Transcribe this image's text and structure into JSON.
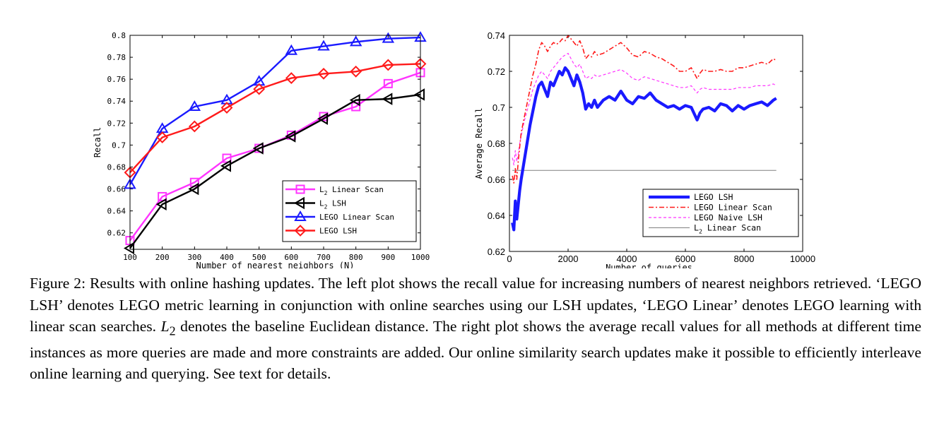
{
  "chart_data": [
    {
      "type": "line",
      "title": "",
      "xlabel": "Number of nearest neighbors (N)",
      "ylabel": "Recall",
      "xlim": [
        100,
        1000
      ],
      "ylim": [
        0.605,
        0.8
      ],
      "xticks": [
        100,
        200,
        300,
        400,
        500,
        600,
        700,
        800,
        900,
        1000
      ],
      "yticks": [
        0.62,
        0.64,
        0.66,
        0.68,
        0.7,
        0.72,
        0.74,
        0.76,
        0.78,
        0.8
      ],
      "ytick_labels": [
        "0.62",
        "0.64",
        "0.66",
        "0.68",
        "0.7",
        "0.72",
        "0.74",
        "0.76",
        "0.78",
        "0.8"
      ],
      "grid": false,
      "legend_position": "bottom-right",
      "x": [
        100,
        200,
        300,
        400,
        500,
        600,
        700,
        800,
        900,
        1000
      ],
      "series": [
        {
          "name": "L2 Linear Scan",
          "legend_main": "L",
          "legend_sub": "2",
          "legend_rest": " Linear Scan",
          "color": "#ff33ff",
          "marker": "square",
          "values": [
            0.613,
            0.653,
            0.666,
            0.688,
            0.697,
            0.709,
            0.726,
            0.735,
            0.756,
            0.766
          ]
        },
        {
          "name": "L2 LSH",
          "legend_main": "L",
          "legend_sub": "2",
          "legend_rest": " LSH",
          "color": "#000000",
          "marker": "triangle-left",
          "values": [
            0.606,
            0.646,
            0.66,
            0.681,
            0.697,
            0.708,
            0.724,
            0.741,
            0.742,
            0.746
          ]
        },
        {
          "name": "LEGO Linear Scan",
          "legend_main": "LEGO Linear Scan",
          "legend_sub": "",
          "legend_rest": "",
          "color": "#1a1aff",
          "marker": "triangle-up",
          "values": [
            0.664,
            0.715,
            0.735,
            0.741,
            0.758,
            0.786,
            0.79,
            0.794,
            0.797,
            0.798
          ]
        },
        {
          "name": "LEGO LSH",
          "legend_main": "LEGO LSH",
          "legend_sub": "",
          "legend_rest": "",
          "color": "#ff1a1a",
          "marker": "diamond",
          "values": [
            0.675,
            0.707,
            0.717,
            0.734,
            0.751,
            0.761,
            0.765,
            0.767,
            0.773,
            0.774
          ]
        }
      ]
    },
    {
      "type": "line",
      "title": "",
      "xlabel": "Number of queries",
      "ylabel": "Average Recall",
      "xlim": [
        0,
        10000
      ],
      "ylim": [
        0.62,
        0.74
      ],
      "xticks": [
        0,
        2000,
        4000,
        6000,
        8000,
        10000
      ],
      "yticks": [
        0.62,
        0.64,
        0.66,
        0.68,
        0.7,
        0.72,
        0.74
      ],
      "ytick_labels": [
        "0.62",
        "0.64",
        "0.66",
        "0.68",
        "0.7",
        "0.72",
        "0.74"
      ],
      "grid": false,
      "legend_position": "bottom-right",
      "series": [
        {
          "name": "LEGO LSH",
          "legend_main": "LEGO LSH",
          "legend_sub": "",
          "legend_rest": "",
          "color": "#1a1aff",
          "style": "solid-thick",
          "x": [
            100,
            150,
            200,
            250,
            300,
            350,
            400,
            500,
            600,
            700,
            800,
            900,
            1000,
            1100,
            1200,
            1300,
            1400,
            1500,
            1600,
            1700,
            1800,
            1900,
            2000,
            2100,
            2200,
            2300,
            2400,
            2500,
            2600,
            2700,
            2800,
            2900,
            3000,
            3200,
            3400,
            3600,
            3800,
            4000,
            4200,
            4400,
            4600,
            4800,
            5000,
            5200,
            5400,
            5600,
            5800,
            6000,
            6200,
            6400,
            6500,
            6600,
            6800,
            7000,
            7200,
            7400,
            7600,
            7800,
            8000,
            8200,
            8400,
            8600,
            8800,
            9000,
            9100
          ],
          "values": [
            0.636,
            0.632,
            0.648,
            0.638,
            0.646,
            0.654,
            0.66,
            0.67,
            0.68,
            0.69,
            0.698,
            0.706,
            0.712,
            0.714,
            0.71,
            0.706,
            0.714,
            0.712,
            0.716,
            0.72,
            0.718,
            0.722,
            0.72,
            0.716,
            0.712,
            0.718,
            0.714,
            0.708,
            0.699,
            0.702,
            0.7,
            0.704,
            0.7,
            0.704,
            0.706,
            0.704,
            0.709,
            0.704,
            0.702,
            0.706,
            0.705,
            0.708,
            0.704,
            0.702,
            0.7,
            0.701,
            0.699,
            0.701,
            0.7,
            0.693,
            0.697,
            0.699,
            0.7,
            0.698,
            0.702,
            0.701,
            0.698,
            0.701,
            0.699,
            0.701,
            0.702,
            0.703,
            0.701,
            0.704,
            0.705
          ]
        },
        {
          "name": "LEGO Linear Scan",
          "legend_main": "LEGO Linear Scan",
          "legend_sub": "",
          "legend_rest": "",
          "color": "#ff1a1a",
          "style": "dashdot",
          "x": [
            100,
            150,
            200,
            250,
            300,
            350,
            400,
            500,
            600,
            700,
            800,
            900,
            1000,
            1100,
            1200,
            1300,
            1400,
            1500,
            1600,
            1700,
            1800,
            1900,
            2000,
            2100,
            2200,
            2300,
            2400,
            2500,
            2600,
            2700,
            2800,
            2900,
            3000,
            3200,
            3400,
            3600,
            3800,
            4000,
            4200,
            4400,
            4600,
            4800,
            5000,
            5200,
            5400,
            5600,
            5800,
            6000,
            6200,
            6400,
            6500,
            6600,
            6800,
            7000,
            7200,
            7400,
            7600,
            7800,
            8000,
            8200,
            8400,
            8600,
            8800,
            9000,
            9100
          ],
          "values": [
            0.662,
            0.658,
            0.666,
            0.66,
            0.67,
            0.678,
            0.686,
            0.694,
            0.702,
            0.71,
            0.718,
            0.724,
            0.732,
            0.736,
            0.734,
            0.731,
            0.734,
            0.736,
            0.735,
            0.736,
            0.738,
            0.737,
            0.74,
            0.738,
            0.736,
            0.734,
            0.737,
            0.733,
            0.727,
            0.729,
            0.728,
            0.731,
            0.729,
            0.73,
            0.732,
            0.734,
            0.736,
            0.733,
            0.729,
            0.728,
            0.731,
            0.73,
            0.728,
            0.727,
            0.725,
            0.723,
            0.72,
            0.72,
            0.722,
            0.716,
            0.719,
            0.721,
            0.72,
            0.72,
            0.721,
            0.72,
            0.72,
            0.722,
            0.722,
            0.723,
            0.724,
            0.725,
            0.724,
            0.727,
            0.726
          ]
        },
        {
          "name": "LEGO Naive LSH",
          "legend_main": "LEGO Naive LSH",
          "legend_sub": "",
          "legend_rest": "",
          "color": "#ff33ff",
          "style": "dashed",
          "x": [
            100,
            150,
            200,
            250,
            300,
            350,
            400,
            500,
            600,
            700,
            800,
            900,
            1000,
            1100,
            1200,
            1300,
            1400,
            1500,
            1600,
            1700,
            1800,
            1900,
            2000,
            2100,
            2200,
            2300,
            2400,
            2500,
            2600,
            2700,
            2800,
            2900,
            3000,
            3200,
            3400,
            3600,
            3800,
            4000,
            4200,
            4400,
            4600,
            4800,
            5000,
            5200,
            5400,
            5600,
            5800,
            6000,
            6200,
            6400,
            6500,
            6600,
            6800,
            7000,
            7200,
            7400,
            7600,
            7800,
            8000,
            8200,
            8400,
            8600,
            8800,
            9000,
            9100
          ],
          "values": [
            0.672,
            0.668,
            0.676,
            0.67,
            0.674,
            0.68,
            0.684,
            0.692,
            0.698,
            0.704,
            0.71,
            0.714,
            0.718,
            0.72,
            0.718,
            0.716,
            0.72,
            0.722,
            0.724,
            0.726,
            0.728,
            0.729,
            0.73,
            0.727,
            0.724,
            0.722,
            0.724,
            0.72,
            0.716,
            0.717,
            0.716,
            0.718,
            0.717,
            0.718,
            0.719,
            0.72,
            0.721,
            0.719,
            0.716,
            0.715,
            0.717,
            0.716,
            0.715,
            0.714,
            0.713,
            0.712,
            0.711,
            0.711,
            0.712,
            0.708,
            0.71,
            0.711,
            0.71,
            0.71,
            0.71,
            0.71,
            0.71,
            0.711,
            0.711,
            0.711,
            0.712,
            0.712,
            0.712,
            0.713,
            0.712
          ]
        },
        {
          "name": "L2 Linear Scan",
          "legend_main": "L",
          "legend_sub": "2",
          "legend_rest": " Linear Scan",
          "color": "#808080",
          "style": "solid-thin",
          "x": [
            100,
            9100
          ],
          "values": [
            0.665,
            0.665
          ]
        }
      ]
    }
  ],
  "caption": {
    "label": "Figure 2:",
    "part1": " Results with online hashing updates. The left plot shows the recall value for increasing numbers of nearest neighbors retrieved. ‘LEGO LSH’ denotes LEGO metric learning in conjunction with online searches using our LSH updates, ‘LEGO Linear’ denotes LEGO learning with linear scan searches. ",
    "math_main": "L",
    "math_sub": "2",
    "part2": " denotes the baseline Euclidean distance. The right plot shows the average recall values for all methods at different time instances as more queries are made and more constraints are added. Our online similarity search updates make it possible to efficiently interleave online learning and querying. See text for details."
  }
}
